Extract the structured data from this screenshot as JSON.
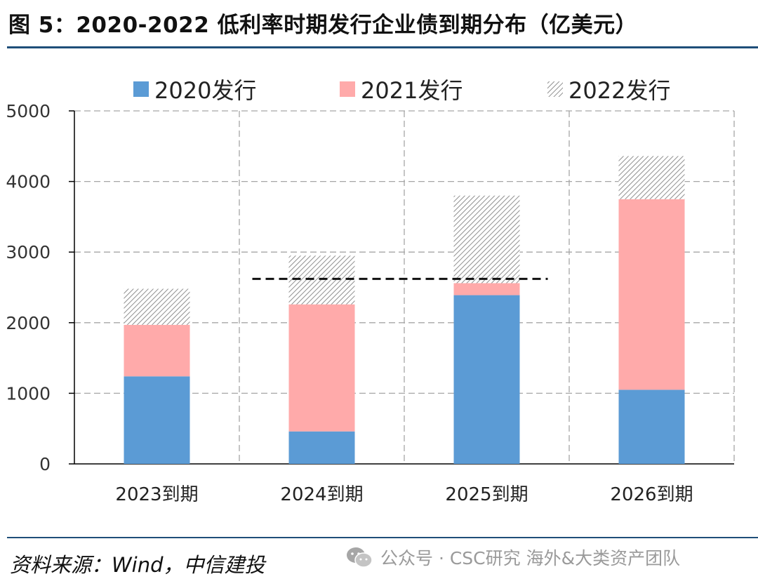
{
  "title": "图 5：2020-2022 低利率时期发行企业债到期分布（亿美元）",
  "footer": {
    "source": "资料来源：Wind，中信建投",
    "watermark": "公众号 · CSC研究 海外&大类资产团队"
  },
  "chart_data": {
    "type": "bar",
    "stacked": true,
    "title": "2020-2022 低利率时期发行企业债到期分布（亿美元）",
    "categories": [
      "2023到期",
      "2024到期",
      "2025到期",
      "2026到期"
    ],
    "series": [
      {
        "name": "2020发行",
        "values": [
          1240,
          460,
          2390,
          1050
        ],
        "color": "#5b9bd5",
        "pattern": "solid"
      },
      {
        "name": "2021发行",
        "values": [
          730,
          1800,
          170,
          2700
        ],
        "color": "#ffaaaa",
        "pattern": "solid"
      },
      {
        "name": "2022发行",
        "values": [
          510,
          690,
          1240,
          610
        ],
        "color": "#9e9e9e",
        "pattern": "diagonal-hatch"
      }
    ],
    "ylim": [
      0,
      5000
    ],
    "yticks": [
      "0",
      "1000",
      "2000",
      "3000",
      "4000",
      "5000"
    ],
    "xlabel": "",
    "ylabel": "",
    "grid": true,
    "legend_position": "top",
    "reference_line": {
      "y": 2620,
      "style": "dashed",
      "color": "#111111",
      "span": [
        "2024到期",
        "2025到期"
      ]
    }
  }
}
